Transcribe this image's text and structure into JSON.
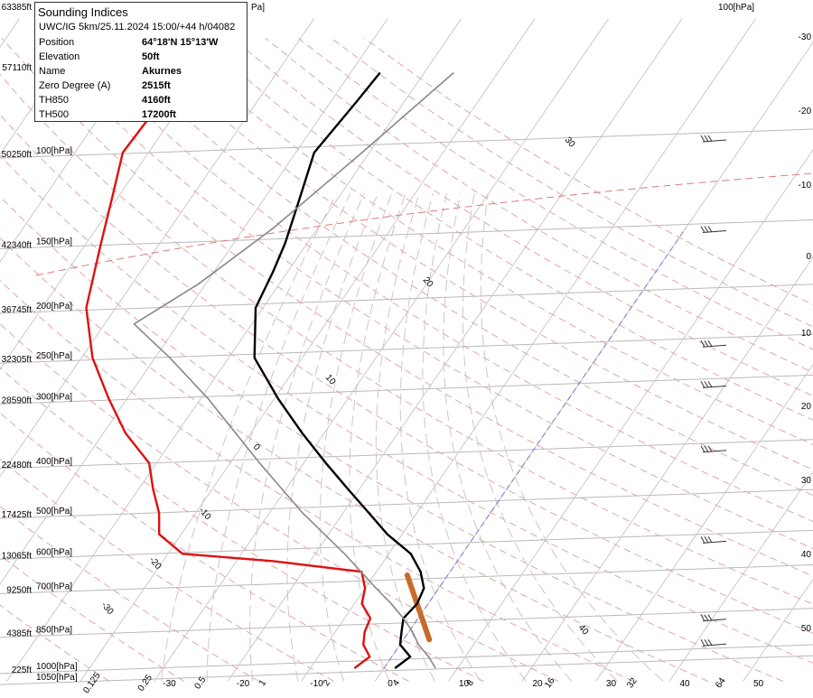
{
  "info": {
    "title": "Sounding Indices",
    "subtitle": "UWC/IG 5km/25.11.2024 15:00/+44 h/04082",
    "rows": [
      {
        "label": "Position",
        "value": "64°18'N 15°13'W"
      },
      {
        "label": "Elevation",
        "value": "50ft"
      },
      {
        "label": "Name",
        "value": "Akurnes"
      },
      {
        "label": "Zero Degree (A)",
        "value": "2515ft"
      },
      {
        "label": "TH850",
        "value": "4160ft"
      },
      {
        "label": "TH500",
        "value": "17200ft"
      }
    ]
  },
  "chart_data": {
    "type": "line",
    "chart_kind": "skew-T log-P sounding",
    "pressure_levels": [
      {
        "p": 100,
        "label": "100[hPa]",
        "alt": "50250ft"
      },
      {
        "p": 150,
        "label": "150[hPa]",
        "alt": "42340ft"
      },
      {
        "p": 200,
        "label": "200[hPa]",
        "alt": "36745ft"
      },
      {
        "p": 250,
        "label": "250[hPa]",
        "alt": "32305ft"
      },
      {
        "p": 300,
        "label": "300[hPa]",
        "alt": "28590ft"
      },
      {
        "p": 400,
        "label": "400[hPa]",
        "alt": "22480ft"
      },
      {
        "p": 500,
        "label": "500[hPa]",
        "alt": "17425ft"
      },
      {
        "p": 600,
        "label": "600[hPa]",
        "alt": "13065ft"
      },
      {
        "p": 700,
        "label": "700[hPa]",
        "alt": "9250ft"
      },
      {
        "p": 850,
        "label": "850[hPa]",
        "alt": "4385ft"
      },
      {
        "p": 1000,
        "label": "1000[hPa]",
        "alt": "225ft"
      },
      {
        "p": 1050,
        "label": "1050[hPa]",
        "alt": ""
      }
    ],
    "top_labels": {
      "alt": "63385ft",
      "hpa_partial": "Pa]",
      "alt2": "57110ft",
      "right_hpa": "100[hPa]"
    },
    "bottom_temp_ticks": [
      -30,
      -20,
      -10,
      0,
      10,
      20,
      30,
      40,
      50
    ],
    "bottom_temp_labels": [
      "-30",
      "-20",
      "-10",
      "0",
      "10",
      "20",
      "30",
      "40",
      "50"
    ],
    "bottom_mixing_labels": [
      "0.125",
      "0.25",
      "0.5",
      "1",
      "2",
      "4",
      "8",
      "16",
      "32",
      "64"
    ],
    "right_axis_labels": [
      "-30",
      "-20",
      "-10",
      "0",
      "10",
      "20",
      "30",
      "40",
      "50"
    ],
    "isotherm_labels": [
      {
        "t": -30,
        "text": "-30"
      },
      {
        "t": -20,
        "text": "-20"
      },
      {
        "t": -10,
        "text": "-10"
      },
      {
        "t": 0,
        "text": "0"
      },
      {
        "t": 10,
        "text": "10"
      },
      {
        "t": 20,
        "text": "20"
      },
      {
        "t": 30,
        "text": "30"
      },
      {
        "t": 40,
        "text": "40"
      }
    ],
    "series": [
      {
        "key": "temperature",
        "color": "#000000",
        "points": [
          [
            1000,
            1.5
          ],
          [
            950,
            2.5
          ],
          [
            900,
            0.0
          ],
          [
            850,
            -1.0
          ],
          [
            800,
            -2.0
          ],
          [
            750,
            -1.5
          ],
          [
            700,
            -2.0
          ],
          [
            650,
            -4.0
          ],
          [
            600,
            -7.0
          ],
          [
            550,
            -12.0
          ],
          [
            500,
            -16.5
          ],
          [
            450,
            -21.5
          ],
          [
            400,
            -27.0
          ],
          [
            350,
            -33.0
          ],
          [
            300,
            -39.5
          ],
          [
            250,
            -46.5
          ],
          [
            200,
            -51.0
          ],
          [
            170,
            -52.0
          ],
          [
            150,
            -53.0
          ],
          [
            125,
            -55.0
          ],
          [
            100,
            -57.5
          ],
          [
            80,
            -56.5
          ],
          [
            70,
            -56.0
          ]
        ]
      },
      {
        "key": "dewpoint",
        "color": "#dd1111",
        "points": [
          [
            1000,
            -4.0
          ],
          [
            950,
            -3.0
          ],
          [
            900,
            -5.0
          ],
          [
            850,
            -6.0
          ],
          [
            800,
            -6.5
          ],
          [
            750,
            -9.0
          ],
          [
            700,
            -10.0
          ],
          [
            650,
            -12.0
          ],
          [
            620,
            -25.0
          ],
          [
            600,
            -38.0
          ],
          [
            550,
            -43.0
          ],
          [
            500,
            -45.0
          ],
          [
            450,
            -48.0
          ],
          [
            400,
            -51.0
          ],
          [
            350,
            -57.0
          ],
          [
            300,
            -62.5
          ],
          [
            250,
            -68.5
          ],
          [
            200,
            -74.0
          ],
          [
            150,
            -78.0
          ],
          [
            120,
            -81.0
          ],
          [
            100,
            -83.5
          ],
          [
            80,
            -83.0
          ],
          [
            70,
            -82.0
          ]
        ]
      },
      {
        "key": "parcel",
        "color": "#888888",
        "points": [
          [
            1000,
            7.0
          ],
          [
            950,
            5.0
          ],
          [
            900,
            2.5
          ],
          [
            850,
            0.5
          ],
          [
            800,
            -2.0
          ],
          [
            750,
            -5.0
          ],
          [
            700,
            -8.5
          ],
          [
            600,
            -16.0
          ],
          [
            500,
            -25.5
          ],
          [
            400,
            -36.0
          ],
          [
            300,
            -49.0
          ],
          [
            250,
            -58.0
          ],
          [
            215,
            -66.0
          ],
          [
            180,
            -61.0
          ],
          [
            140,
            -56.0
          ],
          [
            100,
            -51.0
          ],
          [
            70,
            -46.0
          ]
        ]
      }
    ],
    "zero_degree_line": {
      "color": "#7777dd",
      "t": 0
    },
    "icing_band": {
      "from_p": 880,
      "to_p": 660
    },
    "wind_barbs_p": [
      100,
      150,
      250,
      300,
      400,
      600,
      850,
      950
    ],
    "grid": true
  }
}
